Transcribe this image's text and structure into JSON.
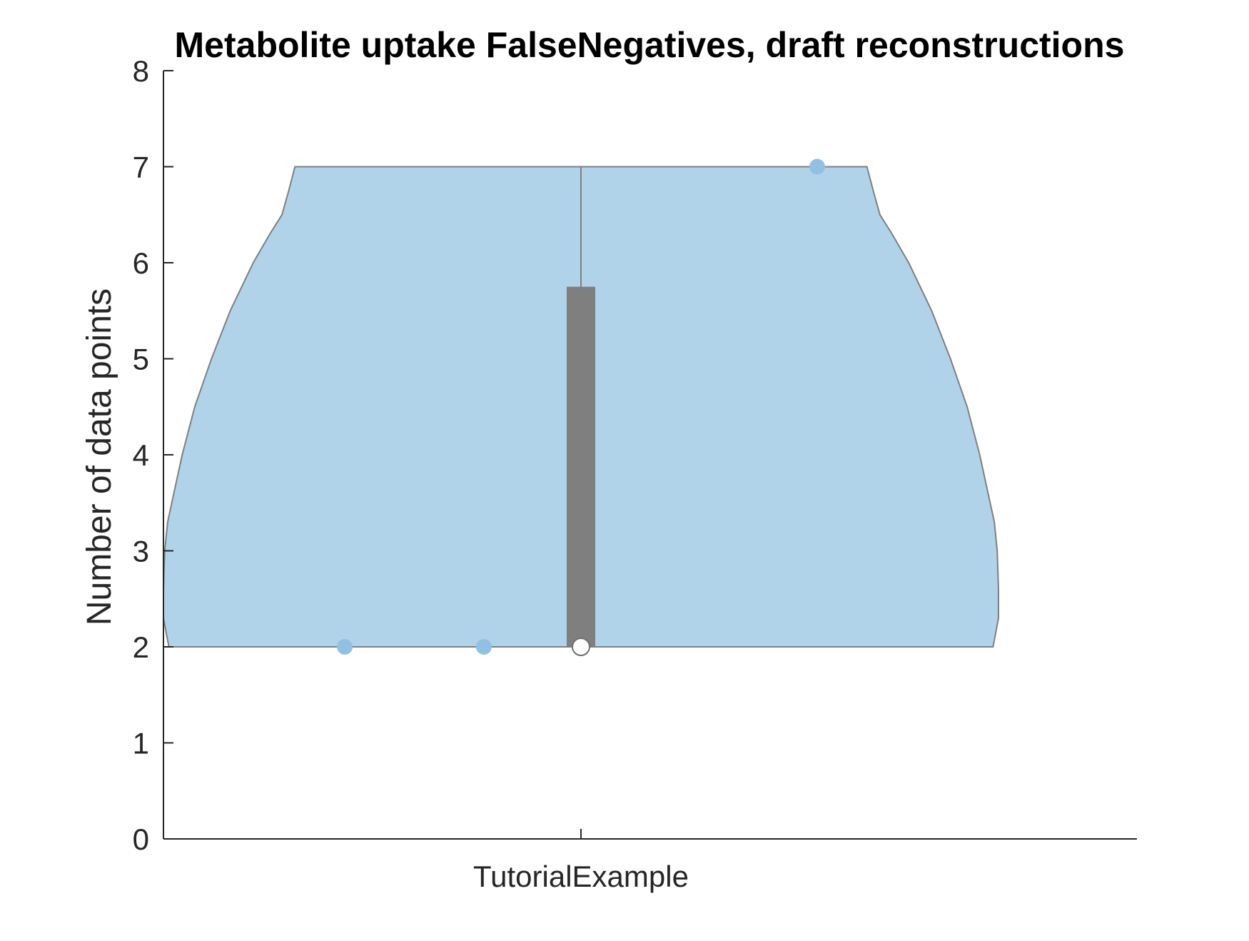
{
  "chart_data": {
    "type": "violin",
    "title": "Metabolite uptake FalseNegatives, draft reconstructions",
    "xlabel": "",
    "ylabel": "Number of data points",
    "categories": [
      "TutorialExample"
    ],
    "ylim": [
      0,
      8
    ],
    "yticks": [
      "0",
      "1",
      "2",
      "3",
      "4",
      "5",
      "6",
      "7",
      "8"
    ],
    "grid": false,
    "points": [
      {
        "category": "TutorialExample",
        "y": 2
      },
      {
        "category": "TutorialExample",
        "y": 2
      },
      {
        "category": "TutorialExample",
        "y": 7
      }
    ],
    "summary": {
      "min": 2,
      "max": 7,
      "median": 2,
      "q1": 2,
      "q3": 5.75
    },
    "colors": {
      "violin_fill": "#b1d3ea",
      "violin_edge": "#7f7f7f",
      "points": "#92c0e3",
      "box": "#7f7f7f",
      "median_marker": "#ffffff"
    }
  }
}
